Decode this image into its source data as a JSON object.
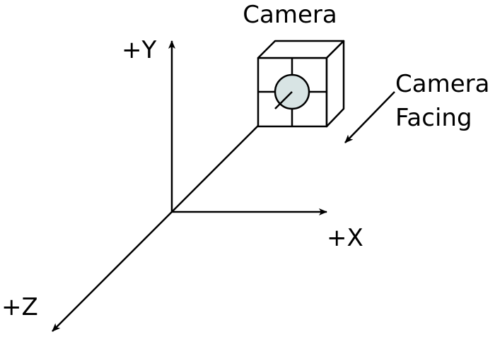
{
  "diagram": {
    "title": "Camera",
    "axes": {
      "y_label": "+Y",
      "x_label": "+X",
      "z_label": "+Z"
    },
    "facing_label": [
      "Camera",
      "Facing"
    ]
  },
  "colors": {
    "stroke": "#000000",
    "lens_fill": "#d8e4e4",
    "background": "#ffffff"
  },
  "icons": {
    "camera": "cube-camera-icon"
  }
}
